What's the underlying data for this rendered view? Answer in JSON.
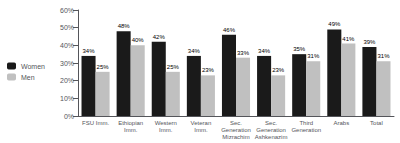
{
  "chart_data": {
    "type": "bar",
    "categories": [
      "FSU Imm.",
      "Ethiopian\nImm.",
      "Western\nImm.",
      "Veteran\nImm.",
      "Sec.\nGeneration\nMizrachim",
      "Sec.\nGeneration\nAshkenazim",
      "Third\nGeneration",
      "Arabs",
      "Total"
    ],
    "series": [
      {
        "name": "Women",
        "color": "#1a1a1a",
        "values": [
          34,
          48,
          42,
          34,
          46,
          34,
          35,
          49,
          39
        ],
        "value_labels": [
          "34%",
          "48%",
          "42%",
          "34%",
          "46%",
          "34%",
          "35%",
          "49%",
          "39%"
        ]
      },
      {
        "name": "Men",
        "color": "#c0c0c0",
        "values": [
          25,
          40,
          25,
          23,
          33,
          23,
          31,
          41,
          31
        ],
        "value_labels": [
          "25%",
          "40%",
          "25%",
          "23%",
          "33%",
          "23%",
          "31%",
          "41%",
          "31%"
        ]
      }
    ],
    "ylim": [
      0,
      60
    ],
    "yticks": [
      {
        "value": 0,
        "label": "0%"
      },
      {
        "value": 10,
        "label": "10%"
      },
      {
        "value": 20,
        "label": "20%"
      },
      {
        "value": 30,
        "label": "30%"
      },
      {
        "value": 40,
        "label": "40%"
      },
      {
        "value": 50,
        "label": "50%"
      },
      {
        "value": 60,
        "label": "60%"
      }
    ],
    "data_labels": true,
    "grid": false,
    "legend": "left"
  }
}
